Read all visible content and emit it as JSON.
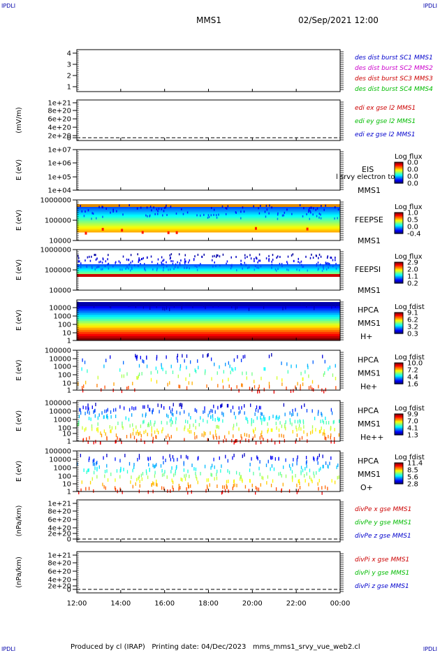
{
  "corner_text": "IPDLI",
  "header": {
    "spacecraft": "MMS1",
    "datetime": "02/Sep/2021 12:00"
  },
  "footer": {
    "text": "Produced by cl (IRAP)   Printing date: 04/Dec/2023   mms_mms1_srvy_vue_web2.cl"
  },
  "colors": {
    "red": "#cc0000",
    "green": "#00bb00",
    "blue": "#0000cc",
    "magenta": "#cc00cc"
  },
  "chart_data": [
    {
      "type": "line",
      "id": "dist",
      "ytick_labels": [
        "4",
        "3",
        "2",
        "1"
      ],
      "ylim": [
        0.5,
        4.5
      ],
      "series": [
        {
          "name": "des dist burst SC1 MMS1",
          "color": "#0000cc"
        },
        {
          "name": "des dist burst SC2 MMS2",
          "color": "#cc00cc"
        },
        {
          "name": "des dist burst SC3 MMS3",
          "color": "#cc0000"
        },
        {
          "name": "des dist burst SC4 MMS4",
          "color": "#00bb00"
        }
      ]
    },
    {
      "type": "line",
      "id": "edi",
      "ylabel": "(mV/m)",
      "ytick_labels": [
        "1e+21",
        "8e+20",
        "6e+20",
        "4e+20",
        "2e+20",
        "0"
      ],
      "series": [
        {
          "name": "edi ex gse l2 MMS1",
          "color": "#cc0000"
        },
        {
          "name": "edi ey gse l2 MMS1",
          "color": "#00bb00"
        },
        {
          "name": "edi ez gse l2 MMS1",
          "color": "#0000cc"
        }
      ]
    },
    {
      "type": "heatmap",
      "id": "eis",
      "ylabel": "E (eV)",
      "ytick_labels": [
        "1e+07",
        "1e+06",
        "1e+05",
        "1e+04"
      ],
      "instrument": [
        "EIS",
        "MMS1"
      ],
      "overlay_text": "l srvy electron to",
      "colorbar": {
        "title": "Log flux",
        "labels": [
          "0.0",
          "0.0",
          "0.0",
          "0.0"
        ]
      }
    },
    {
      "type": "heatmap",
      "id": "feepse",
      "ylabel": "E (eV)",
      "ytick_labels": [
        "1000000",
        "100000",
        "10000"
      ],
      "instrument": [
        "FEEPSE",
        "MMS1"
      ],
      "colorbar": {
        "title": "Log flux",
        "labels": [
          "1.0",
          "0.5",
          "0.0",
          "-0.4"
        ]
      }
    },
    {
      "type": "heatmap",
      "id": "feepsi",
      "ylabel": "E (eV)",
      "ytick_labels": [
        "1000000",
        "100000",
        "10000"
      ],
      "instrument": [
        "FEEPSI",
        "MMS1"
      ],
      "colorbar": {
        "title": "Log flux",
        "labels": [
          "2.9",
          "2.0",
          "1.1",
          "0.2"
        ]
      }
    },
    {
      "type": "heatmap",
      "id": "hpca_h",
      "ylabel": "E (eV)",
      "ytick_labels": [
        "10000",
        "1000",
        "100",
        "10",
        "1"
      ],
      "instrument": [
        "HPCA",
        "MMS1"
      ],
      "species": "H+",
      "colorbar": {
        "title": "Log fdist",
        "labels": [
          "9.1",
          "6.2",
          "3.2",
          "0.3"
        ]
      }
    },
    {
      "type": "heatmap",
      "id": "hpca_he",
      "ylabel": "E (eV)",
      "ytick_labels": [
        "100000",
        "10000",
        "1000",
        "100",
        "10",
        "1"
      ],
      "instrument": [
        "HPCA",
        "MMS1"
      ],
      "species": "He+",
      "colorbar": {
        "title": "Log fdist",
        "labels": [
          "10.0",
          "7.2",
          "4.4",
          "1.6"
        ]
      }
    },
    {
      "type": "heatmap",
      "id": "hpca_hepp",
      "ylabel": "E (eV)",
      "ytick_labels": [
        "100000",
        "10000",
        "1000",
        "100",
        "10",
        "1"
      ],
      "instrument": [
        "HPCA",
        "MMS1"
      ],
      "species": "He++",
      "colorbar": {
        "title": "Log fdist",
        "labels": [
          "9.9",
          "7.0",
          "4.1",
          "1.3"
        ]
      }
    },
    {
      "type": "heatmap",
      "id": "hpca_o",
      "ylabel": "E (eV)",
      "ytick_labels": [
        "100000",
        "10000",
        "1000",
        "100",
        "10",
        "1"
      ],
      "instrument": [
        "HPCA",
        "MMS1"
      ],
      "species": "O+",
      "colorbar": {
        "title": "Log fdist",
        "labels": [
          "11.4",
          "8.5",
          "5.6",
          "2.8"
        ]
      }
    },
    {
      "type": "line",
      "id": "divpe",
      "ylabel": "(nPa/km)",
      "ytick_labels": [
        "1e+21",
        "8e+20",
        "6e+20",
        "4e+20",
        "2e+20",
        "0"
      ],
      "series": [
        {
          "name": "divPe x gse MMS1",
          "color": "#cc0000"
        },
        {
          "name": "divPe y gse MMS1",
          "color": "#00bb00"
        },
        {
          "name": "divPe z gse MMS1",
          "color": "#0000cc"
        }
      ]
    },
    {
      "type": "line",
      "id": "divpi",
      "ylabel": "(nPa/km)",
      "ytick_labels": [
        "1e+21",
        "8e+20",
        "6e+20",
        "4e+20",
        "2e+20",
        "0"
      ],
      "series": [
        {
          "name": "divPi x gse MMS1",
          "color": "#cc0000"
        },
        {
          "name": "divPi y gse MMS1",
          "color": "#00bb00"
        },
        {
          "name": "divPi z gse MMS1",
          "color": "#0000cc"
        }
      ]
    }
  ],
  "time_axis": {
    "tick_labels": [
      "12:00",
      "14:00",
      "16:00",
      "18:00",
      "20:00",
      "22:00",
      "00:00"
    ]
  }
}
